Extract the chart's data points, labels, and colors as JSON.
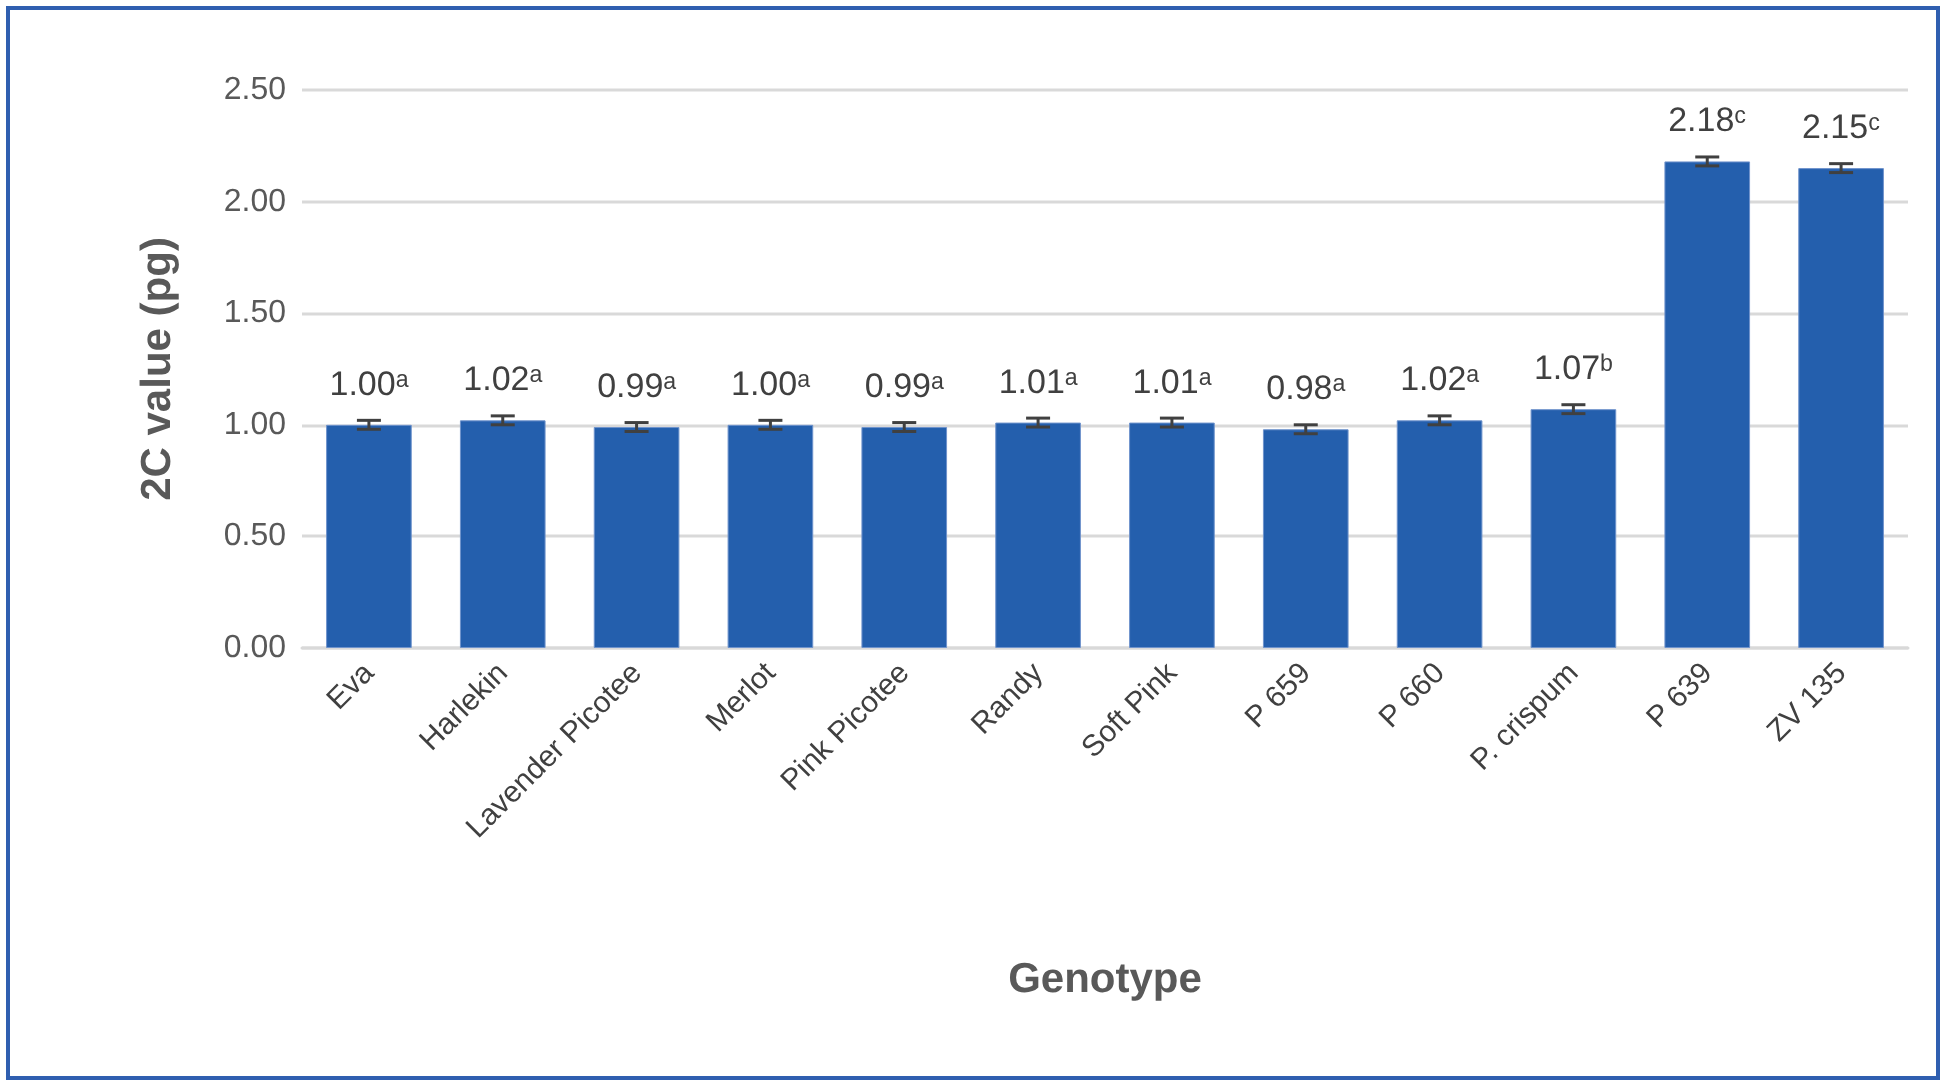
{
  "chart_data": {
    "type": "bar",
    "xlabel": "Genotype",
    "ylabel": "2C value (pg)",
    "categories": [
      "Eva",
      "Harlekin",
      "Lavender Picotee",
      "Merlot",
      "Pink Picotee",
      "Randy",
      "Soft Pink",
      "P 659",
      "P 660",
      "P. crispum",
      "P 639",
      "ZV 135"
    ],
    "values": [
      1.0,
      1.02,
      0.99,
      1.0,
      0.99,
      1.01,
      1.01,
      0.98,
      1.02,
      1.07,
      2.18,
      2.15
    ],
    "value_labels": [
      "1.00ᵃ",
      "1.02ᵃ",
      "0.99ᵃ",
      "1.00ᵃ",
      "0.99ᵃ",
      "1.01ᵃ",
      "1.01ᵃ",
      "0.98ᵃ",
      "1.02ᵃ",
      "1.07ᵇ",
      "2.18ᶜ",
      "2.15ᶜ"
    ],
    "errors": [
      0.02,
      0.02,
      0.02,
      0.02,
      0.02,
      0.02,
      0.02,
      0.02,
      0.02,
      0.02,
      0.02,
      0.02
    ],
    "color": "#245fad",
    "ylim": [
      0,
      2.5
    ],
    "yticks": [
      {
        "value": 0,
        "label": "0.00"
      },
      {
        "value": 0.5,
        "label": "0.50"
      },
      {
        "value": 1,
        "label": "1.00"
      },
      {
        "value": 1.5,
        "label": "1.50"
      },
      {
        "value": 2,
        "label": "2.00"
      },
      {
        "value": 2.5,
        "label": "2.50"
      }
    ],
    "grid": "y"
  }
}
